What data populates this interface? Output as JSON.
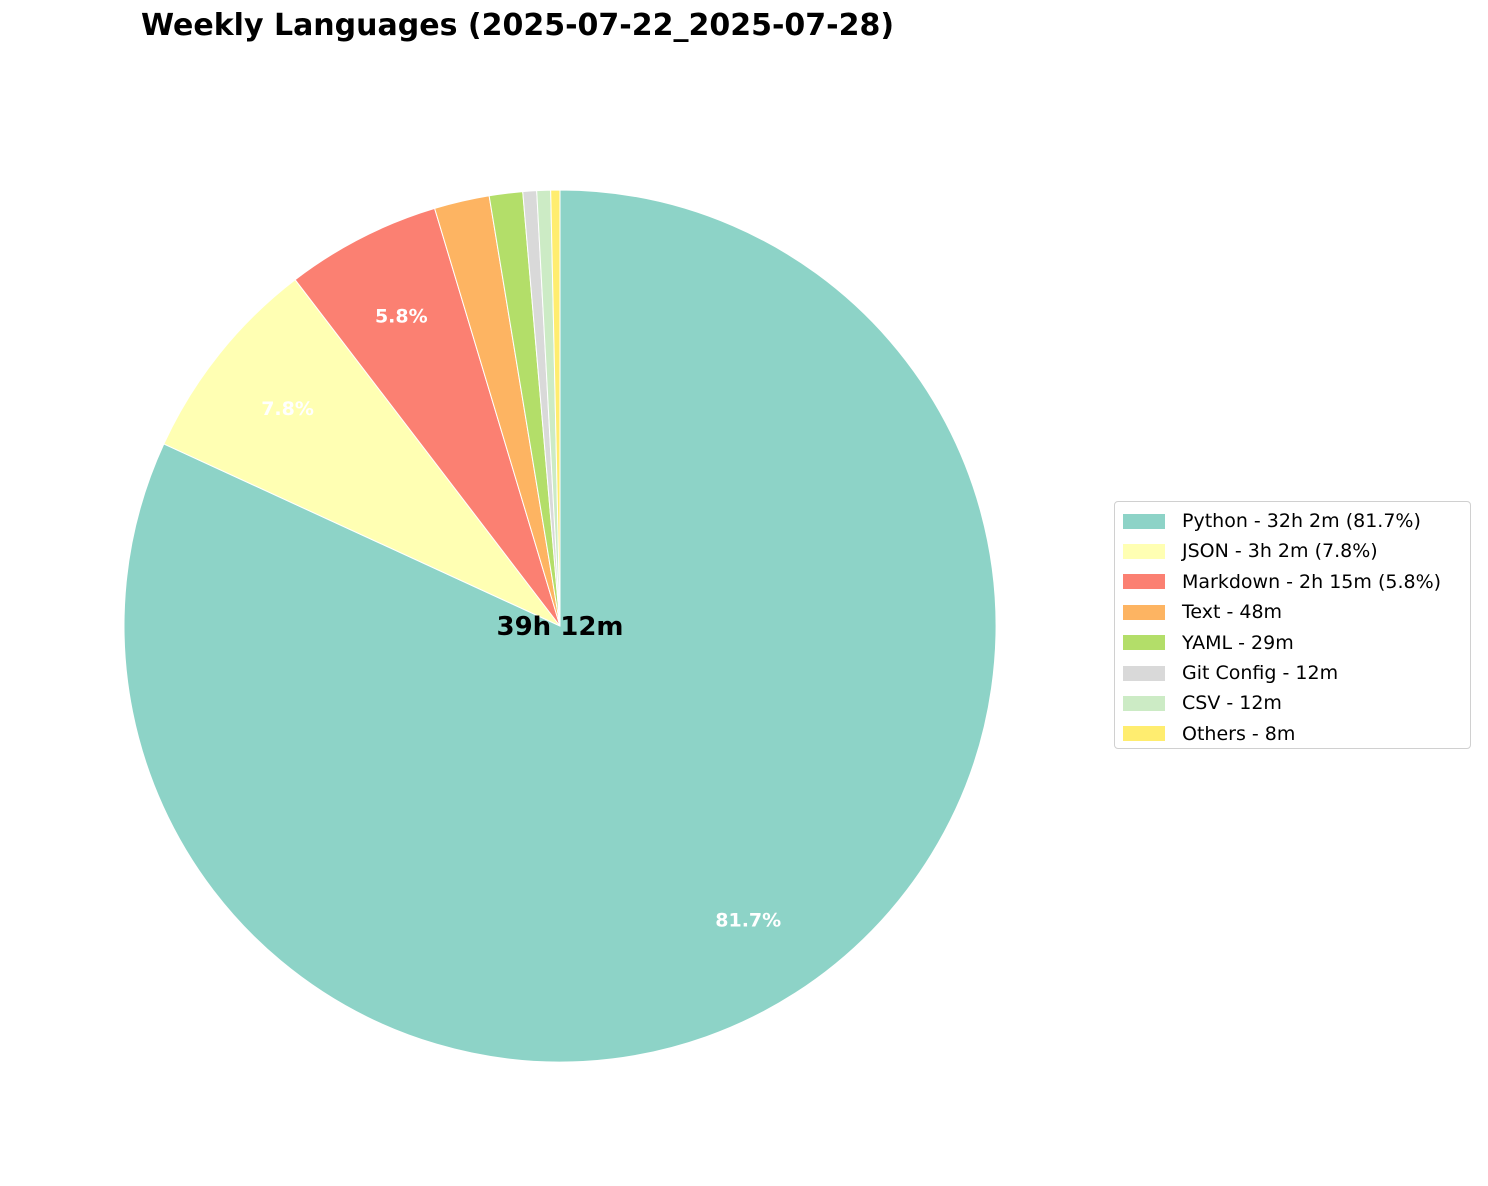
{
  "chart_data": {
    "type": "pie",
    "title": "Weekly Languages (2025-07-22_2025-07-28)",
    "center_label": "39h 12m",
    "start_angle_deg": 90,
    "direction": "clockwise",
    "slices": [
      {
        "name": "Python",
        "minutes": 1922,
        "legend": "Python - 32h 2m (81.7%)",
        "pct_label": "81.7%",
        "color": "#8dd3c7"
      },
      {
        "name": "JSON",
        "minutes": 182,
        "legend": "JSON - 3h 2m (7.8%)",
        "pct_label": "7.8%",
        "color": "#ffffb3"
      },
      {
        "name": "Markdown",
        "minutes": 135,
        "legend": "Markdown - 2h 15m (5.8%)",
        "pct_label": "5.8%",
        "color": "#fb8072"
      },
      {
        "name": "Text",
        "minutes": 48,
        "legend": "Text - 48m",
        "pct_label": "",
        "color": "#fdb462"
      },
      {
        "name": "YAML",
        "minutes": 29,
        "legend": "YAML - 29m",
        "pct_label": "",
        "color": "#b3de69"
      },
      {
        "name": "Git Config",
        "minutes": 12,
        "legend": "Git Config - 12m",
        "pct_label": "",
        "color": "#d9d9d9"
      },
      {
        "name": "CSV",
        "minutes": 12,
        "legend": "CSV - 12m",
        "pct_label": "",
        "color": "#ccebc5"
      },
      {
        "name": "Others",
        "minutes": 8,
        "legend": "Others - 8m",
        "pct_label": "",
        "color": "#ffed6f"
      }
    ],
    "legend_position": "right"
  }
}
